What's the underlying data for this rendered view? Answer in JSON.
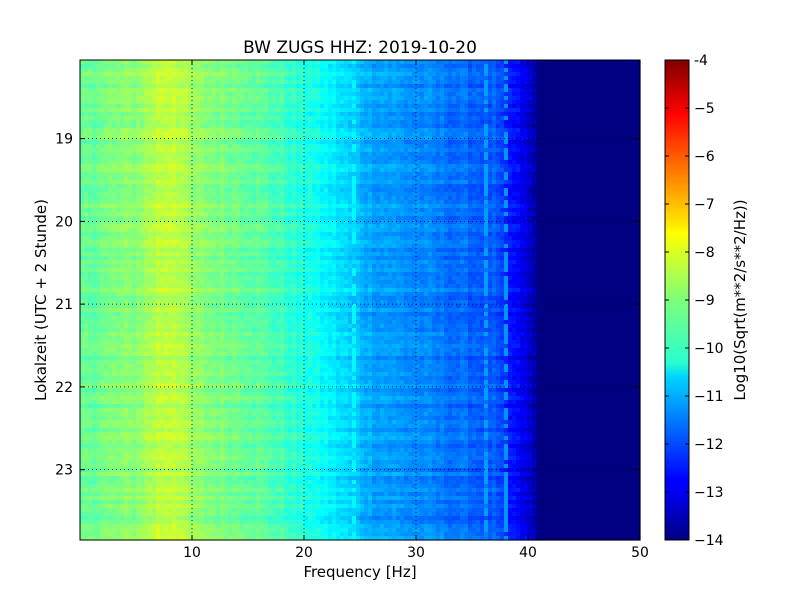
{
  "chart_data": {
    "type": "heatmap",
    "title": "BW ZUGS HHZ: 2019-10-20",
    "xlabel": "Frequency [Hz]",
    "ylabel": "Lokalzeit (UTC + 2 Stunde)",
    "colorbar_label": "Log10(Sqrt(m**2/s**2/Hz))",
    "xlim": [
      0,
      50
    ],
    "ylim": [
      18.05,
      23.85
    ],
    "y_inverted": true,
    "clim": [
      -14,
      -4
    ],
    "colormap": "jet",
    "grid": true,
    "x_ticks": [
      "10",
      "20",
      "30",
      "40",
      "50"
    ],
    "x_tick_values": [
      10,
      20,
      30,
      40,
      50
    ],
    "y_ticks": [
      "19",
      "20",
      "21",
      "22",
      "23"
    ],
    "y_tick_values": [
      19,
      20,
      21,
      22,
      23
    ],
    "colorbar_ticks": [
      "-4",
      "−5",
      "−6",
      "−7",
      "−8",
      "−9",
      "−10",
      "−11",
      "−12",
      "−13",
      "−14"
    ],
    "colorbar_tick_values": [
      -4,
      -5,
      -6,
      -7,
      -8,
      -9,
      -10,
      -11,
      -12,
      -13,
      -14
    ],
    "frequency_profile": {
      "frequency_hz": [
        0,
        2,
        5,
        7,
        8.5,
        10,
        12,
        15,
        18,
        20,
        22,
        24.5,
        26,
        30,
        34,
        37,
        38,
        40,
        41,
        50
      ],
      "log10_amplitude": [
        -9.3,
        -9.1,
        -8.9,
        -8.4,
        -8.3,
        -8.8,
        -9.0,
        -9.2,
        -9.6,
        -10.0,
        -10.3,
        -10.8,
        -11.1,
        -11.4,
        -11.7,
        -11.9,
        -12.4,
        -13.1,
        -14.0,
        -14.0
      ]
    },
    "line_features": [
      {
        "frequency_hz": 24.5,
        "log10_amplitude": -10.3
      },
      {
        "frequency_hz": 38.0,
        "log10_amplitude": -11.3
      },
      {
        "frequency_hz": 36.3,
        "log10_amplitude": -11.2
      },
      {
        "frequency_hz": 20.5,
        "log10_amplitude": -9.8
      }
    ]
  }
}
